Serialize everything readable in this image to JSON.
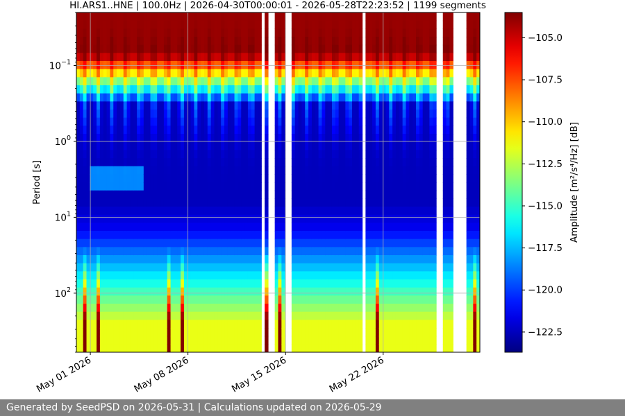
{
  "chart_data": {
    "type": "heatmap",
    "title": "HI.ARS1..HNE | 100.0Hz | 2026-04-30T00:00:01 - 2026-05-28T22:23:52 | 1199 segments",
    "ylabel": "Period [s]",
    "colorbar_label": "Amplitude [m²/s⁴/Hz] [dB]",
    "y_scale": "log",
    "y_inverted": true,
    "ylim_seconds": [
      0.02,
      600
    ],
    "y_tick_labels": [
      {
        "value": 0.1,
        "base": "10",
        "exp": "−1"
      },
      {
        "value": 1,
        "base": "10",
        "exp": "0"
      },
      {
        "value": 10,
        "base": "10",
        "exp": "1"
      },
      {
        "value": 100,
        "base": "10",
        "exp": "2"
      }
    ],
    "xlim": [
      "2026-04-30T00:00:01",
      "2026-05-28T22:23:52"
    ],
    "x_tick_labels": [
      {
        "date": "2026-05-01",
        "label": "May 01 2026"
      },
      {
        "date": "2026-05-08",
        "label": "May 08 2026"
      },
      {
        "date": "2026-05-15",
        "label": "May 15 2026"
      },
      {
        "date": "2026-05-22",
        "label": "May 22 2026"
      }
    ],
    "data_gaps": [
      [
        "2026-05-13T08:00",
        "2026-05-13T13:00"
      ],
      [
        "2026-05-13T19:00",
        "2026-05-14T07:00"
      ],
      [
        "2026-05-14T20:00",
        "2026-05-15T08:00"
      ],
      [
        "2026-05-20T14:00",
        "2026-05-20T20:00"
      ],
      [
        "2026-05-25T20:00",
        "2026-05-26T07:00"
      ],
      [
        "2026-05-27T00:00",
        "2026-05-28T00:00"
      ]
    ],
    "color_scale": {
      "colormap": "jet",
      "range_db": [
        -123.7,
        -103.5
      ],
      "tick_values": [
        -105.0,
        -107.5,
        -110.0,
        -112.5,
        -115.0,
        -117.5,
        -120.0,
        -122.5
      ],
      "tick_labels": [
        "−105.0",
        "−107.5",
        "−110.0",
        "−112.5",
        "−115.0",
        "−117.5",
        "−120.0",
        "−122.5"
      ]
    },
    "grid": true
  },
  "footer": {
    "text": "Generated by SeedPSD on 2026-05-31 | Calculations updated on 2026-05-29"
  }
}
